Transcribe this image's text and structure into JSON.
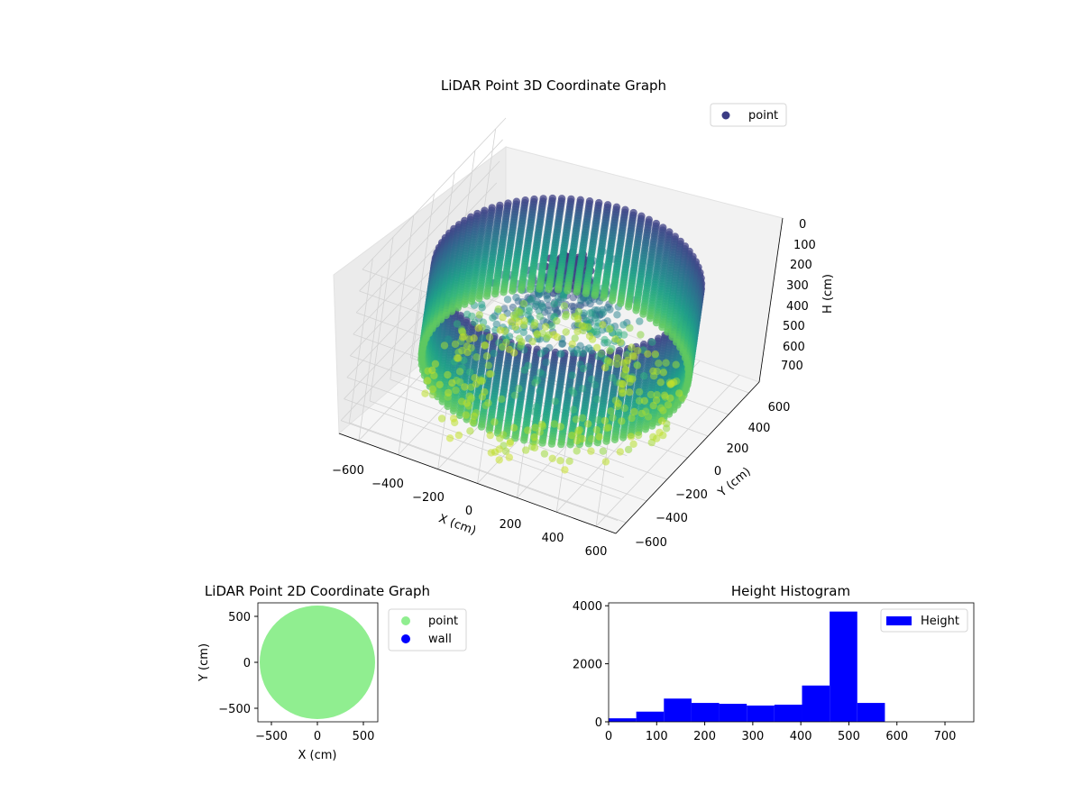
{
  "chart_data": [
    {
      "type": "scatter",
      "projection": "3d",
      "title": "LiDAR Point 3D Coordinate Graph",
      "xlabel": "X (cm)",
      "ylabel": "Y (cm)",
      "zlabel": "H (cm)",
      "xlim": [
        -700,
        700
      ],
      "ylim": [
        -700,
        700
      ],
      "zlim": [
        0,
        760
      ],
      "z_inverted": true,
      "xticks": [
        "−600",
        "−400",
        "−200",
        "0",
        "200",
        "400",
        "600"
      ],
      "yticks": [
        "−600",
        "−400",
        "−200",
        "0",
        "200",
        "400",
        "600"
      ],
      "zticks": [
        "0",
        "100",
        "200",
        "300",
        "400",
        "500",
        "600",
        "700"
      ],
      "colormap": "viridis",
      "legend": {
        "entries": [
          "point"
        ],
        "placement": "top-right"
      },
      "structure": {
        "wall_radius": 600,
        "wall_columns": 90,
        "wall_height_range": [
          150,
          580
        ],
        "center_cluster_height": 80
      }
    },
    {
      "type": "scatter",
      "title": "LiDAR Point 2D Coordinate Graph",
      "xlabel": "X (cm)",
      "ylabel": "Y (cm)",
      "xlim": [
        -650,
        650
      ],
      "ylim": [
        -650,
        650
      ],
      "xticks": [
        "−500",
        "0",
        "500"
      ],
      "yticks": [
        "−500",
        "0",
        "500"
      ],
      "series": [
        {
          "name": "point",
          "color": "#90ee90",
          "shape": "disk",
          "radius": 620
        },
        {
          "name": "wall",
          "color": "#0000ff",
          "points": []
        }
      ],
      "legend": {
        "entries": [
          "point",
          "wall"
        ],
        "placement": "outside-right"
      }
    },
    {
      "type": "bar",
      "title": "Height Histogram",
      "xlim": [
        0,
        760
      ],
      "ylim": [
        0,
        4100
      ],
      "xticks": [
        "0",
        "100",
        "200",
        "300",
        "400",
        "500",
        "600",
        "700"
      ],
      "yticks": [
        "0",
        "2000",
        "4000"
      ],
      "bin_edges": [
        0,
        57.5,
        115,
        172.5,
        230,
        287.5,
        345,
        402.5,
        460,
        517.5,
        575
      ],
      "values": [
        120,
        350,
        800,
        650,
        620,
        560,
        590,
        1250,
        3800,
        650
      ],
      "color": "#0000ff",
      "legend": {
        "entries": [
          "Height"
        ],
        "placement": "top-right"
      }
    }
  ]
}
